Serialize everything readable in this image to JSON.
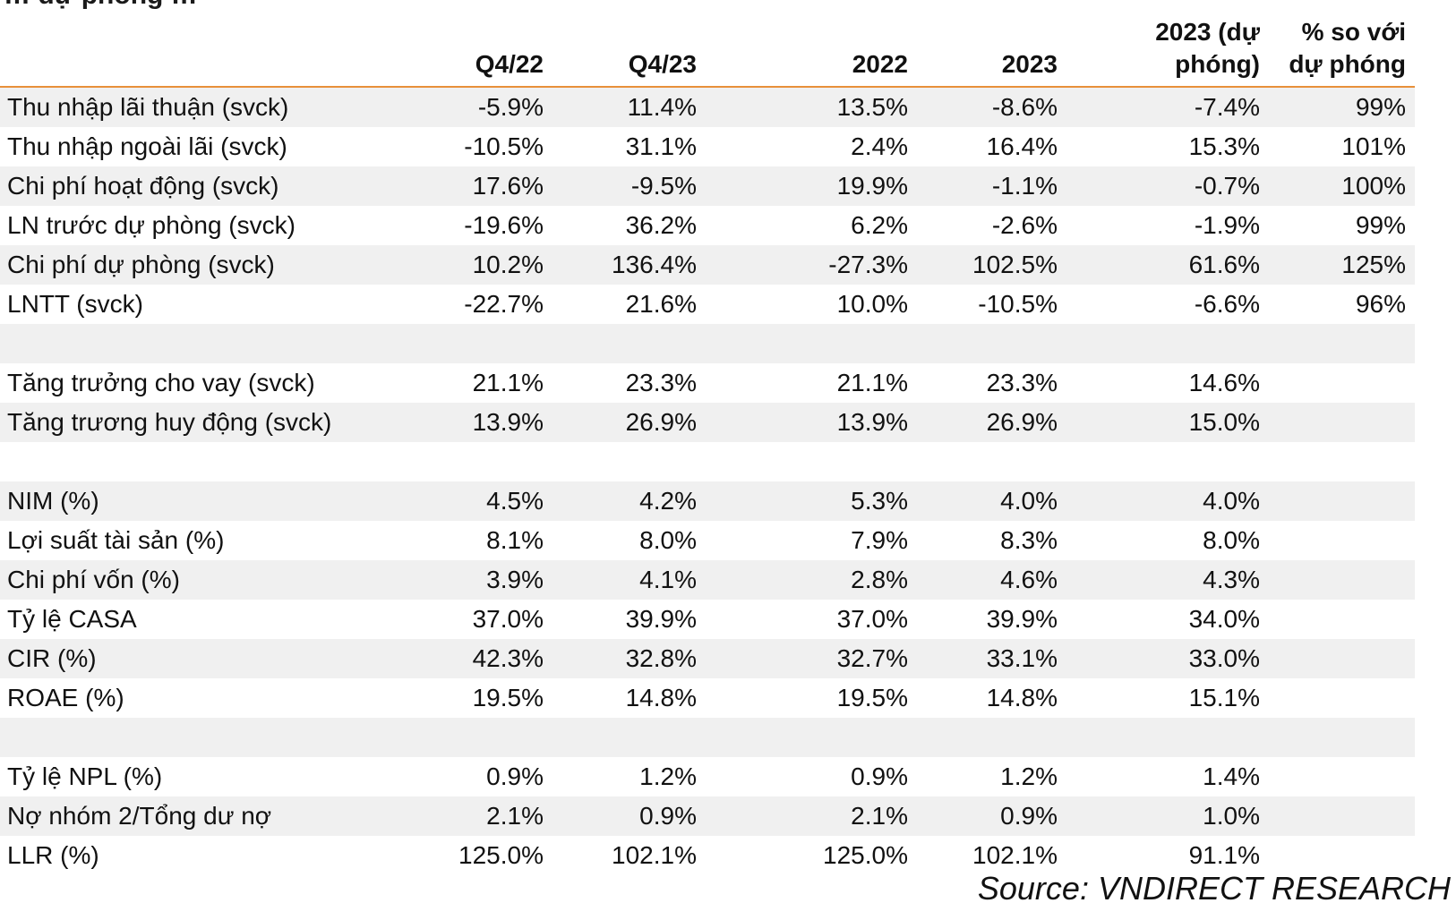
{
  "title": "… dự phòng …",
  "columns": [
    "",
    "Q4/22",
    "Q4/23",
    "2022",
    "2023",
    "2023 (dự phóng)",
    "% so với dự phóng"
  ],
  "rows": [
    {
      "label": "Thu nhập lãi thuận (svck)",
      "values": [
        "-5.9%",
        "11.4%",
        "13.5%",
        "-8.6%",
        "-7.4%",
        "99%"
      ],
      "shade": true
    },
    {
      "label": "Thu nhập ngoài lãi (svck)",
      "values": [
        "-10.5%",
        "31.1%",
        "2.4%",
        "16.4%",
        "15.3%",
        "101%"
      ],
      "shade": false
    },
    {
      "label": "Chi phí hoạt động (svck)",
      "values": [
        "17.6%",
        "-9.5%",
        "19.9%",
        "-1.1%",
        "-0.7%",
        "100%"
      ],
      "shade": true
    },
    {
      "label": "LN trước dự phòng (svck)",
      "values": [
        "-19.6%",
        "36.2%",
        "6.2%",
        "-2.6%",
        "-1.9%",
        "99%"
      ],
      "shade": false
    },
    {
      "label": "Chi phí dự phòng (svck)",
      "values": [
        "10.2%",
        "136.4%",
        "-27.3%",
        "102.5%",
        "61.6%",
        "125%"
      ],
      "shade": true
    },
    {
      "label": "LNTT (svck)",
      "values": [
        "-22.7%",
        "21.6%",
        "10.0%",
        "-10.5%",
        "-6.6%",
        "96%"
      ],
      "shade": false
    },
    {
      "label": "",
      "values": [
        "",
        "",
        "",
        "",
        "",
        ""
      ],
      "shade": true
    },
    {
      "label": "Tăng trưởng cho vay (svck)",
      "values": [
        "21.1%",
        "23.3%",
        "21.1%",
        "23.3%",
        "14.6%",
        ""
      ],
      "shade": false
    },
    {
      "label": "Tăng trương huy động (svck)",
      "values": [
        "13.9%",
        "26.9%",
        "13.9%",
        "26.9%",
        "15.0%",
        ""
      ],
      "shade": true
    },
    {
      "label": "",
      "values": [
        "",
        "",
        "",
        "",
        "",
        ""
      ],
      "shade": false
    },
    {
      "label": "NIM (%)",
      "values": [
        "4.5%",
        "4.2%",
        "5.3%",
        "4.0%",
        "4.0%",
        ""
      ],
      "shade": true
    },
    {
      "label": "Lợi suất tài sản (%)",
      "values": [
        "8.1%",
        "8.0%",
        "7.9%",
        "8.3%",
        "8.0%",
        ""
      ],
      "shade": false
    },
    {
      "label": "Chi phí vốn (%)",
      "values": [
        "3.9%",
        "4.1%",
        "2.8%",
        "4.6%",
        "4.3%",
        ""
      ],
      "shade": true
    },
    {
      "label": "Tỷ lệ CASA",
      "values": [
        "37.0%",
        "39.9%",
        "37.0%",
        "39.9%",
        "34.0%",
        ""
      ],
      "shade": false
    },
    {
      "label": "CIR (%)",
      "values": [
        "42.3%",
        "32.8%",
        "32.7%",
        "33.1%",
        "33.0%",
        ""
      ],
      "shade": true
    },
    {
      "label": "ROAE (%)",
      "values": [
        "19.5%",
        "14.8%",
        "19.5%",
        "14.8%",
        "15.1%",
        ""
      ],
      "shade": false
    },
    {
      "label": "",
      "values": [
        "",
        "",
        "",
        "",
        "",
        ""
      ],
      "shade": true
    },
    {
      "label": "Tỷ lệ NPL (%)",
      "values": [
        "0.9%",
        "1.2%",
        "0.9%",
        "1.2%",
        "1.4%",
        ""
      ],
      "shade": false
    },
    {
      "label": "Nợ nhóm 2/Tổng dư nợ",
      "values": [
        "2.1%",
        "0.9%",
        "2.1%",
        "0.9%",
        "1.0%",
        ""
      ],
      "shade": true
    },
    {
      "label": "LLR (%)",
      "values": [
        "125.0%",
        "102.1%",
        "125.0%",
        "102.1%",
        "91.1%",
        ""
      ],
      "shade": false
    }
  ],
  "source": "Source: VNDIRECT RESEARCH",
  "colors": {
    "header_rule": "#e8903a",
    "row_shade": "#f0f0f0"
  }
}
